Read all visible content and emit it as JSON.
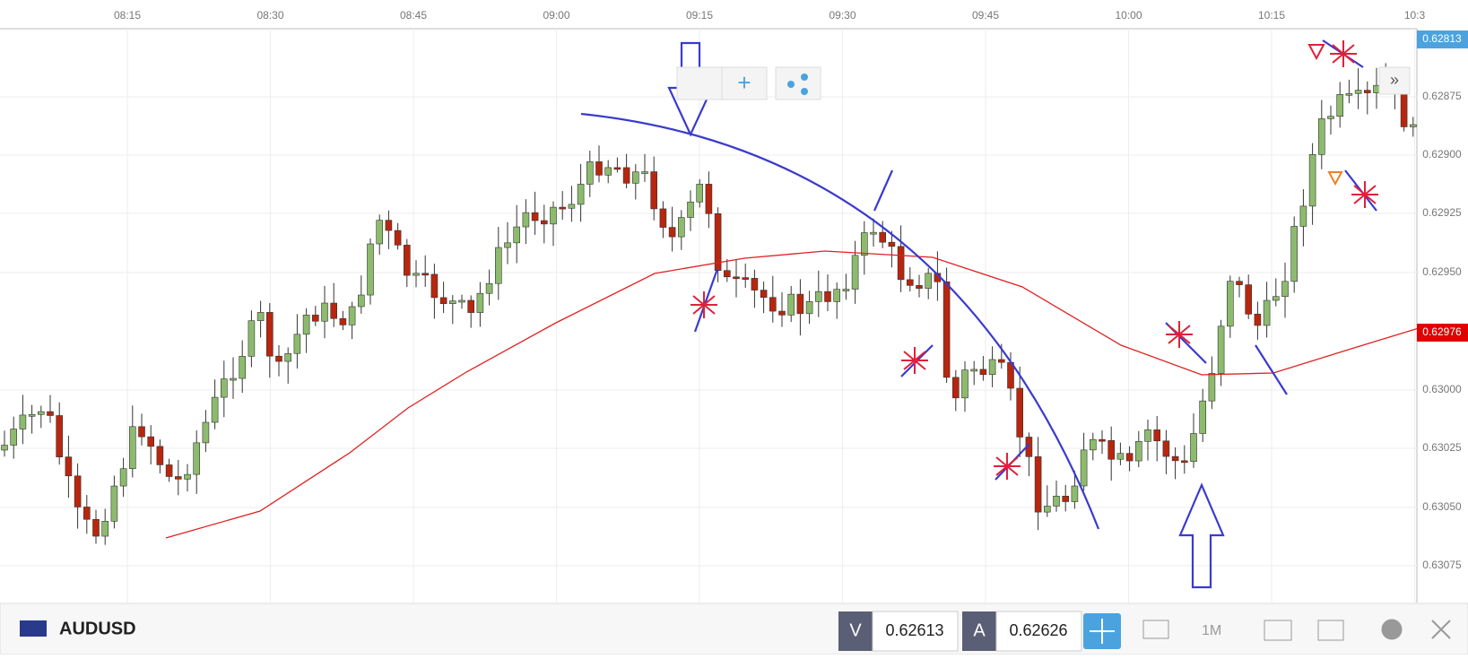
{
  "header": {
    "symbol": "AUDUSD"
  },
  "time_axis": [
    "08:15",
    "08:30",
    "08:45",
    "09:00",
    "09:15",
    "09:30",
    "09:45",
    "10:00",
    "10:15",
    "10:3"
  ],
  "price_axis": [
    "0.62875",
    "0.62900",
    "0.62925",
    "0.62950",
    "0.63000",
    "0.63025",
    "0.63050",
    "0.63075"
  ],
  "top_price_label": "0.62813",
  "current_price_label": "0.62976",
  "trade_buttons": [
    {
      "side": "V",
      "price": "0.62613"
    },
    {
      "side": "A",
      "price": "0.62626"
    }
  ]
}
